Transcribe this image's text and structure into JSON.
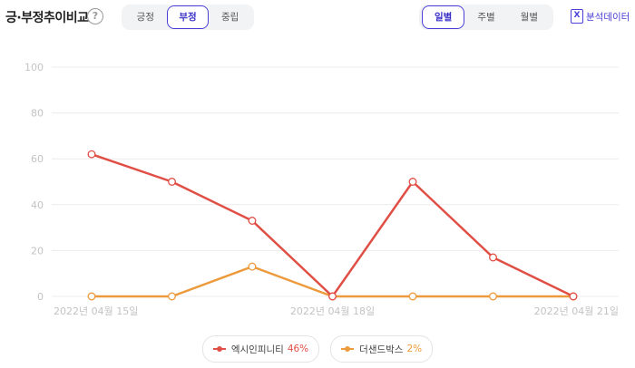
{
  "header": {
    "title": "긍·부정추이비교",
    "help_glyph": "?",
    "sentiment_tabs": [
      {
        "label": "긍정",
        "active": false
      },
      {
        "label": "부정",
        "active": true
      },
      {
        "label": "중립",
        "active": false
      }
    ],
    "period_tabs": [
      {
        "label": "일별",
        "active": true
      },
      {
        "label": "주별",
        "active": false
      },
      {
        "label": "월별",
        "active": false
      }
    ],
    "analysis_icon_glyph": "X",
    "analysis_label": "분석데이터"
  },
  "colors": {
    "accent": "#4a3fd6",
    "series_1": "#e04f45",
    "series_2": "#ec9a3b",
    "grid": "#ececec",
    "tick_text": "#c3c3c3"
  },
  "chart_data": {
    "type": "line",
    "x": [
      "2022-04-15",
      "2022-04-16",
      "2022-04-17",
      "2022-04-18",
      "2022-04-19",
      "2022-04-20",
      "2022-04-21"
    ],
    "x_tick_labels": [
      {
        "index": 0,
        "label": "2022년 04월 15일"
      },
      {
        "index": 3,
        "label": "2022년 04월 18일"
      },
      {
        "index": 6,
        "label": "2022년 04월 21일"
      }
    ],
    "ylim": [
      0,
      100
    ],
    "yticks": [
      0,
      20,
      40,
      60,
      80,
      100
    ],
    "grid": true,
    "legend_position": "bottom-center",
    "series": [
      {
        "name": "엑시인피니티",
        "share": "46%",
        "color": "#e04f45",
        "values": [
          62,
          50,
          33,
          0,
          50,
          17,
          0
        ]
      },
      {
        "name": "더샌드박스",
        "share": "2%",
        "color": "#ec9a3b",
        "values": [
          0,
          0,
          13,
          0,
          0,
          0,
          0
        ]
      }
    ]
  }
}
